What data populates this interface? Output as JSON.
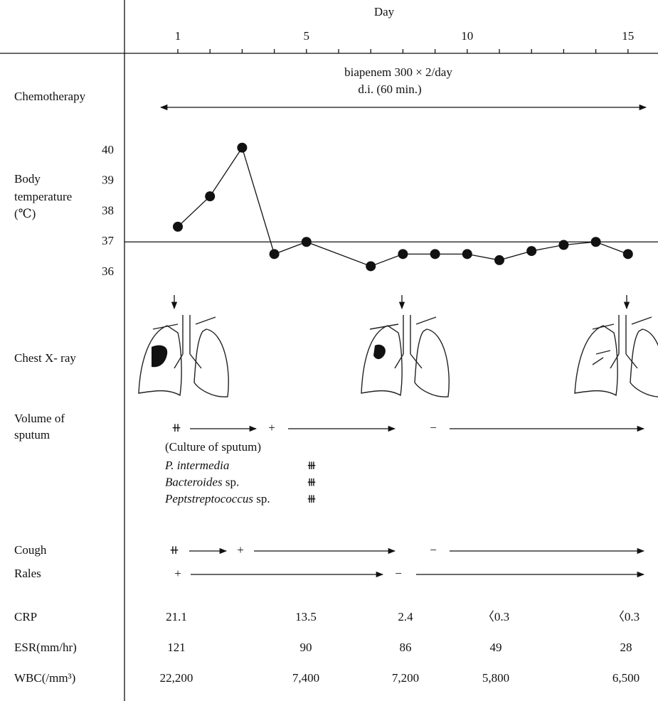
{
  "chart_data": {
    "type": "line",
    "xlabel": "Day",
    "ylabel": [
      "Body",
      "temperature",
      "(℃)"
    ],
    "x": [
      1,
      2,
      3,
      4,
      5,
      7,
      8,
      9,
      10,
      11,
      12,
      13,
      14,
      15
    ],
    "values": [
      37.5,
      38.5,
      40.1,
      36.6,
      37.0,
      36.2,
      36.6,
      36.6,
      36.6,
      36.4,
      36.7,
      36.9,
      37.0,
      36.6
    ],
    "color": "#111111",
    "xlim": [
      -0.5,
      15.8
    ],
    "xticks": [
      1,
      5,
      10,
      15
    ],
    "xminor_ticks": [
      1,
      2,
      3,
      4,
      5,
      6,
      7,
      8,
      9,
      10,
      11,
      12,
      13,
      14,
      15
    ],
    "ylim": [
      35.8,
      40.3
    ],
    "yticks": [
      36,
      37,
      38,
      39,
      40
    ],
    "reference_line": 37
  },
  "chemotherapy": {
    "label": "Chemotherapy",
    "drug": "biapenem  300 × 2/day",
    "route": "d.i. (60 min.)"
  },
  "xray": {
    "label": "Chest X- ray"
  },
  "sputum": {
    "label": [
      "Volume of",
      "sputum"
    ],
    "marks": [
      "⧺",
      "+",
      "−"
    ]
  },
  "culture": {
    "title": "(Culture of sputum)",
    "organisms": [
      {
        "name": "P. intermedia",
        "grade": "⧻"
      },
      {
        "name": "Bacteroides",
        "suffix": "sp.",
        "grade": "⧻"
      },
      {
        "name": "Peptstreptococcus",
        "suffix": "sp.",
        "grade": "⧻"
      }
    ]
  },
  "cough": {
    "label": "Cough",
    "marks": [
      "⧺",
      "+",
      "−"
    ]
  },
  "rales": {
    "label": "Rales",
    "marks": [
      "+",
      "−"
    ]
  },
  "labs": [
    {
      "label": "CRP",
      "values": [
        "21.1",
        "13.5",
        "2.4",
        "〈0.3",
        "〈0.3"
      ]
    },
    {
      "label": "ESR(mm/hr)",
      "values": [
        "121",
        "90",
        "86",
        "49",
        "28"
      ]
    },
    {
      "label": "WBC(/mm³)",
      "values": [
        "22,200",
        "7,400",
        "7,200",
        "5,800",
        "6,500"
      ]
    }
  ]
}
